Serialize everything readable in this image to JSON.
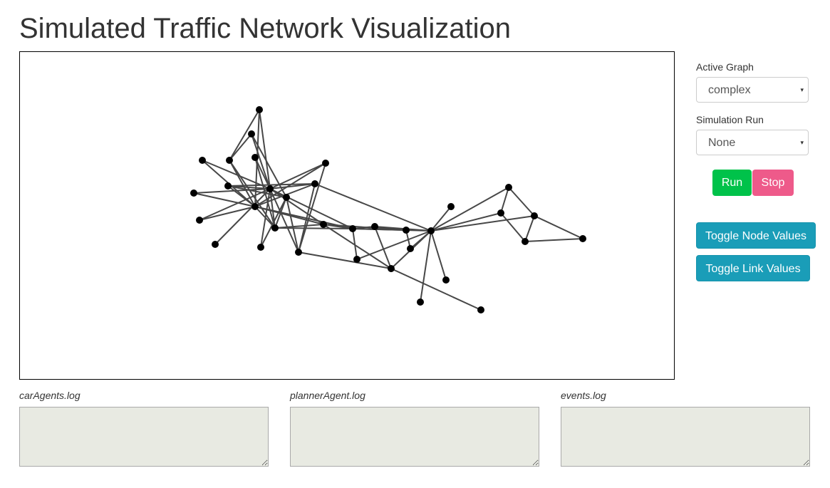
{
  "page": {
    "title": "Simulated Traffic Network Visualization"
  },
  "controls": {
    "active_graph_label": "Active Graph",
    "active_graph_value": "complex",
    "simulation_run_label": "Simulation Run",
    "simulation_run_value": "None",
    "run_label": "Run",
    "stop_label": "Stop",
    "toggle_node_label": "Toggle Node Values",
    "toggle_link_label": "Toggle Link Values",
    "colors": {
      "run": "#00c24a",
      "stop": "#ee5a8a",
      "toggle": "#1a9db8"
    }
  },
  "logs": [
    {
      "label": "carAgents.log",
      "value": ""
    },
    {
      "label": "plannerAgent.log",
      "value": ""
    },
    {
      "label": "events.log",
      "value": ""
    }
  ],
  "icons": {
    "select_caret": "▾"
  }
}
